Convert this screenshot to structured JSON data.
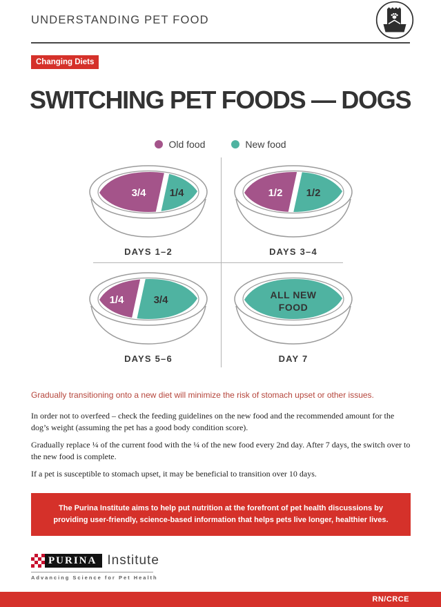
{
  "header": {
    "title": "UNDERSTANDING PET FOOD"
  },
  "badge": {
    "label": "Changing Diets"
  },
  "title": "SWITCHING PET FOODS — DOGS",
  "legend": {
    "old": {
      "label": "Old food",
      "color": "#a4548a"
    },
    "new": {
      "label": "New food",
      "color": "#4fb3a1"
    }
  },
  "bowls": [
    {
      "label": "DAYS 1–2",
      "type": "split",
      "old_label": "3/4",
      "new_label": "1/4",
      "old_value": 0.75,
      "new_value": 0.25
    },
    {
      "label": "DAYS 3–4",
      "type": "split",
      "old_label": "1/2",
      "new_label": "1/2",
      "old_value": 0.5,
      "new_value": 0.5
    },
    {
      "label": "DAYS 5–6",
      "type": "split",
      "old_label": "1/4",
      "new_label": "3/4",
      "old_value": 0.25,
      "new_value": 0.75
    },
    {
      "label": "DAY 7",
      "type": "full",
      "full_label_line1": "ALL NEW",
      "full_label_line2": "FOOD",
      "old_value": 0,
      "new_value": 1
    }
  ],
  "callout": "Gradually transitioning onto a new diet will minimize the risk of stomach upset or other issues.",
  "paragraphs": [
    "In order not to overfeed – check the feeding guidelines on the new food and the recommended amount for the dog’s weight (assuming the pet has a good body condition score).",
    "Gradually replace ¼ of the current food with the ¼ of the new food every 2nd day. After 7 days, the switch over to the new food is complete.",
    "If a pet is susceptible to stomach upset, it may be beneficial to transition over 10 days."
  ],
  "highlight_box": {
    "lines": [
      "The Purina Institute aims to help put nutrition at the forefront of pet health discussions by",
      "providing user-friendly, science-based information that helps pets live longer, healthier lives."
    ]
  },
  "footer": {
    "brand": "PURINA",
    "brand_suffix": "Institute",
    "tagline": "Advancing Science for Pet Health",
    "code": "RN/CRCE"
  },
  "colors": {
    "brand_red": "#d5312a",
    "old_food": "#a4548a",
    "new_food": "#4fb3a1",
    "callout_text": "#b5453b",
    "checker_red": "#c8102e",
    "bowl_outline": "#9b9b9b"
  }
}
